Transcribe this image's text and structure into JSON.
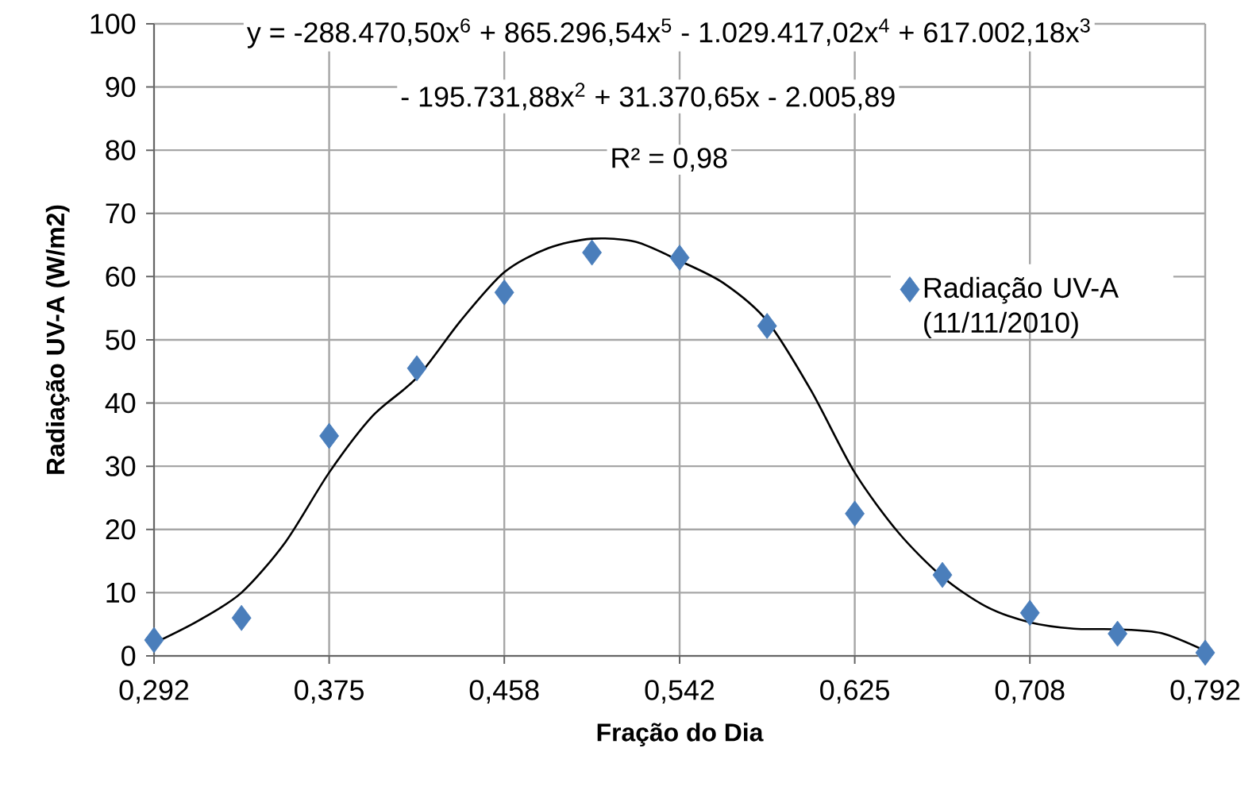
{
  "chart_data": {
    "type": "scatter",
    "xlabel": "Fração do Dia",
    "ylabel": "Radiação UV-A (W/m2)",
    "annotations": [
      "y = -288.470,50x$^{6}$ + 865.296,54x$^{5}$ - 1.029.417,02x$^{4}$ + 617.002,18x$^{3}$",
      "- 195.731,88x$^{2}$ + 31.370,65x - 2.005,89",
      "R² = 0,98"
    ],
    "series": [
      {
        "name": "Radiação UV-A (11/11/2010)",
        "type": "scatter",
        "color": "#4a7ebb",
        "x": [
          0.2917,
          0.3333,
          0.375,
          0.4167,
          0.4583,
          0.5,
          0.5417,
          0.5833,
          0.625,
          0.6667,
          0.7083,
          0.75,
          0.7917
        ],
        "values": [
          2.5,
          6,
          34.8,
          45.5,
          57.5,
          63.8,
          63,
          52.2,
          22.5,
          12.8,
          6.8,
          3.5,
          0.5
        ]
      },
      {
        "type": "line",
        "marker": "none",
        "color": "#000000",
        "x": [
          0.2917,
          0.3125,
          0.3333,
          0.3542,
          0.375,
          0.3958,
          0.4167,
          0.4375,
          0.4583,
          0.4792,
          0.5,
          0.5208,
          0.5417,
          0.5625,
          0.5833,
          0.6042,
          0.625,
          0.6458,
          0.6667,
          0.6875,
          0.7083,
          0.7292,
          0.75,
          0.7708,
          0.7917
        ],
        "values": [
          2,
          5.5,
          10,
          18,
          29,
          38,
          44,
          53,
          60.7,
          64.5,
          66,
          65.5,
          62.5,
          59,
          53,
          42,
          29,
          19.5,
          12.5,
          7.8,
          5.3,
          4.3,
          4.2,
          3.6,
          0.8
        ]
      }
    ],
    "xlim": [
      0.2917,
      0.7917
    ],
    "ylim": [
      0,
      100
    ],
    "xticks": [
      {
        "value": 0.2917,
        "label": "0,292"
      },
      {
        "value": 0.375,
        "label": "0,375"
      },
      {
        "value": 0.4583,
        "label": "0,458"
      },
      {
        "value": 0.5417,
        "label": "0,542"
      },
      {
        "value": 0.625,
        "label": "0,625"
      },
      {
        "value": 0.7083,
        "label": "0,708"
      },
      {
        "value": 0.7917,
        "label": "0,792"
      }
    ],
    "yticks": [
      0,
      10,
      20,
      30,
      40,
      50,
      60,
      70,
      80,
      90,
      100
    ],
    "grid": true,
    "legend": "right",
    "marker": "diamond"
  }
}
